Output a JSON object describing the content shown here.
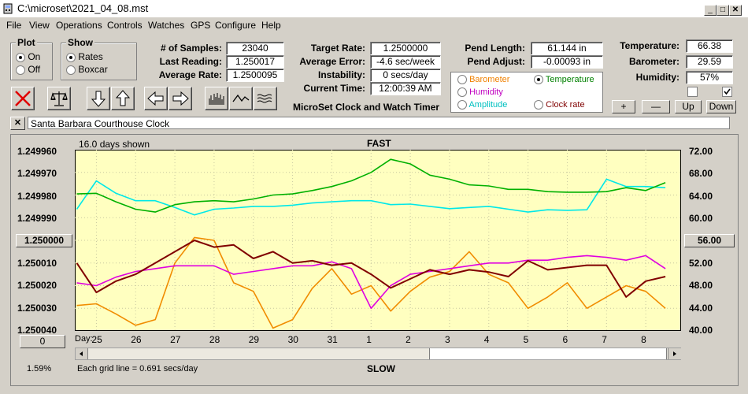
{
  "window": {
    "title": "C:\\microset\\2021_04_08.mst"
  },
  "menu": [
    "File",
    "View",
    "Operations",
    "Controls",
    "Watches",
    "GPS",
    "Configure",
    "Help"
  ],
  "plot": {
    "title": "Plot",
    "on": "On",
    "off": "Off",
    "selected": "On"
  },
  "show": {
    "title": "Show",
    "rates": "Rates",
    "boxcar": "Boxcar",
    "selected": "Rates"
  },
  "stats": {
    "samples_label": "# of Samples:",
    "samples": "23040",
    "last_label": "Last Reading:",
    "last": "1.250017",
    "avg_label": "Average Rate:",
    "avg": "1.2500095",
    "target_label": "Target Rate:",
    "target": "1.2500000",
    "avgerr_label": "Average Error:",
    "avgerr": "-4.6 sec/week",
    "instab_label": "Instability:",
    "instab": "0 secs/day",
    "time_label": "Current Time:",
    "time": "12:00:39 AM",
    "pendlen_label": "Pend Length:",
    "pendlen": "61.144 in",
    "pendadj_label": "Pend Adjust:",
    "pendadj": "-0.00093 in",
    "temp_label": "Temperature:",
    "temp": "66.38",
    "baro_label": "Barometer:",
    "baro": "29.59",
    "hum_label": "Humidity:",
    "hum": "57%"
  },
  "app_name": "MicroSet Clock and Watch Timer",
  "sensors": {
    "barometer": "Barometer",
    "temperature": "Temperature",
    "humidity": "Humidity",
    "amplitude": "Amplitude",
    "clockrate": "Clock rate",
    "selected": "Temperature"
  },
  "adjust_buttons": {
    "plus": "+",
    "minus": "—",
    "up": "Up",
    "down": "Down"
  },
  "clock_name": "Santa Barbara Courthouse Clock",
  "close_x": "✕",
  "chart_header": {
    "days_shown": "16.0 days shown",
    "fast": "FAST",
    "slow": "SLOW",
    "grid_note": "Each grid line = 0.691 secs/day",
    "percent": "1.59%",
    "day_label": "Day:"
  },
  "left_axis": [
    "1.249960",
    "1.249970",
    "1.249980",
    "1.249990",
    "1.250000",
    "1.250010",
    "1.250020",
    "1.250030",
    "1.250040"
  ],
  "left_mid_button": "1.250000",
  "right_axis": [
    "72.00",
    "68.00",
    "64.00",
    "60.00",
    "56.00",
    "52.00",
    "48.00",
    "44.00",
    "40.00"
  ],
  "right_mid_button": "56.00",
  "bottom_left_button": "0",
  "day_ticks": [
    "25",
    "26",
    "27",
    "28",
    "29",
    "30",
    "31",
    "1",
    "2",
    "3",
    "4",
    "5",
    "6",
    "7",
    "8"
  ],
  "colors": {
    "rate": "#800000",
    "temperature": "#00b000",
    "amplitude": "#00e8e8",
    "humidity": "#e000e0",
    "barometer": "#f08c00",
    "plotbg": "#ffffc0",
    "barometer_label": "#f08000",
    "temperature_label": "#008000",
    "humidity_label": "#c000c0",
    "amplitude_label": "#00c0c0",
    "clockrate_label": "#800000"
  },
  "chart_data": {
    "type": "line",
    "x_unit": "day",
    "x": [
      24.5,
      25,
      25.5,
      26,
      26.5,
      27,
      27.5,
      28,
      28.5,
      29,
      29.5,
      30,
      30.5,
      31,
      31.5,
      32,
      32.5,
      33,
      33.5,
      34,
      34.5,
      35,
      35.5,
      36,
      36.5,
      37,
      37.5,
      38,
      38.5,
      39,
      39.5
    ],
    "series": [
      {
        "name": "Clock rate",
        "axis": "left",
        "values": [
          1.25001,
          1.250023,
          1.250018,
          1.250015,
          1.25001,
          1.250005,
          1.25,
          1.250003,
          1.250002,
          1.250008,
          1.250005,
          1.25001,
          1.250009,
          1.250011,
          1.25001,
          1.250015,
          1.250021,
          1.250017,
          1.250013,
          1.250015,
          1.250013,
          1.250014,
          1.250016,
          1.250009,
          1.250013,
          1.250012,
          1.250011,
          1.250011,
          1.250025,
          1.250018,
          1.250016
        ]
      },
      {
        "name": "Temperature",
        "axis": "right",
        "values": [
          64.2,
          64.3,
          62.8,
          61.5,
          61.0,
          62.3,
          62.8,
          63.0,
          62.8,
          63.3,
          64.0,
          64.2,
          64.8,
          65.5,
          66.5,
          68.0,
          70.3,
          69.5,
          67.5,
          66.8,
          65.8,
          65.6,
          65.0,
          65.0,
          64.6,
          64.5,
          64.5,
          64.6,
          65.3,
          64.8,
          66.2
        ]
      },
      {
        "name": "Amplitude",
        "axis": "right",
        "values": [
          61.5,
          66.5,
          64.3,
          63.0,
          63.0,
          61.8,
          60.5,
          61.5,
          61.7,
          62.0,
          62.0,
          62.2,
          62.6,
          62.8,
          63.0,
          63.0,
          62.3,
          62.4,
          62.0,
          61.6,
          61.8,
          62.0,
          61.5,
          61.0,
          61.4,
          61.3,
          61.4,
          66.8,
          65.5,
          65.5,
          65.3
        ]
      },
      {
        "name": "Humidity",
        "axis": "right",
        "values": [
          48.5,
          48.0,
          49.5,
          50.5,
          51.0,
          51.5,
          51.5,
          51.5,
          50.0,
          50.5,
          51.0,
          51.5,
          51.5,
          52.2,
          51.0,
          44.0,
          48.0,
          50.0,
          50.5,
          51.0,
          51.5,
          52.0,
          52.0,
          52.5,
          52.5,
          53.0,
          53.3,
          53.0,
          52.5,
          53.3,
          51.0
        ]
      },
      {
        "name": "Barometer",
        "axis": "right",
        "values": [
          44.5,
          44.8,
          43.0,
          41.0,
          42.0,
          52.0,
          56.5,
          56.0,
          48.5,
          47.0,
          40.5,
          42.0,
          47.5,
          51.0,
          46.5,
          48.0,
          43.5,
          47.0,
          49.5,
          50.5,
          54.0,
          50.0,
          48.5,
          44.0,
          46.0,
          48.5,
          44.0,
          46.0,
          48.0,
          47.0,
          44.0
        ]
      }
    ],
    "ylim_left": [
      1.25004,
      1.24996
    ],
    "ylim_right": [
      40,
      72
    ],
    "xlim": [
      24.45,
      39.9
    ],
    "grid": true
  }
}
